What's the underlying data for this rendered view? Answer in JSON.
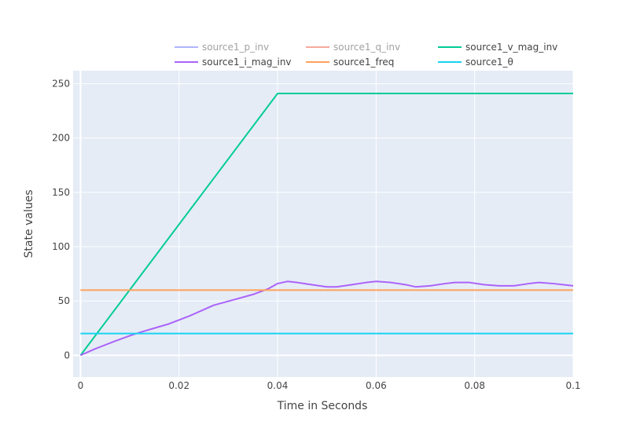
{
  "chart_data": {
    "type": "line",
    "xlabel": "Time in Seconds",
    "ylabel": "State values",
    "xlim": [
      -0.0015,
      0.1
    ],
    "ylim": [
      -20,
      262
    ],
    "x_ticks": [
      0,
      0.02,
      0.04,
      0.06,
      0.08,
      0.1
    ],
    "x_tick_labels": [
      "0",
      "0.02",
      "0.04",
      "0.06",
      "0.08",
      "0.1"
    ],
    "y_ticks": [
      0,
      50,
      100,
      150,
      200,
      250
    ],
    "y_tick_labels": [
      "0",
      "50",
      "100",
      "150",
      "200",
      "250"
    ],
    "grid": true,
    "legend_position": "top",
    "background": "#e5ecf6",
    "series": [
      {
        "name": "source1_p_inv",
        "color": "#636efa",
        "visible": false,
        "x": [],
        "y": []
      },
      {
        "name": "source1_q_inv",
        "color": "#ef553b",
        "visible": false,
        "x": [],
        "y": []
      },
      {
        "name": "source1_v_mag_inv",
        "color": "#00cc96",
        "visible": true,
        "x": [
          0,
          0.04,
          0.1
        ],
        "y": [
          0,
          241,
          241
        ]
      },
      {
        "name": "source1_i_mag_inv",
        "color": "#ab63fa",
        "visible": true,
        "x": [
          0,
          0.003,
          0.007,
          0.01,
          0.012,
          0.015,
          0.018,
          0.022,
          0.027,
          0.031,
          0.035,
          0.038,
          0.04,
          0.042,
          0.044,
          0.047,
          0.05,
          0.052,
          0.055,
          0.058,
          0.06,
          0.063,
          0.066,
          0.068,
          0.071,
          0.074,
          0.076,
          0.079,
          0.082,
          0.085,
          0.088,
          0.091,
          0.093,
          0.096,
          0.1
        ],
        "y": [
          0,
          6,
          13,
          18,
          21,
          25,
          29,
          36,
          46,
          51,
          56,
          61,
          66,
          68,
          67,
          65,
          63,
          63,
          65,
          67,
          68,
          67,
          65,
          63,
          64,
          66,
          67,
          67,
          65,
          64,
          64,
          66,
          67,
          66,
          64
        ]
      },
      {
        "name": "source1_freq",
        "color": "#ffa15a",
        "visible": true,
        "x": [
          0,
          0.1
        ],
        "y": [
          60,
          60
        ]
      },
      {
        "name": "source1_θ",
        "color": "#19d3f3",
        "visible": true,
        "x": [
          0,
          0.1
        ],
        "y": [
          20,
          20
        ]
      }
    ]
  }
}
